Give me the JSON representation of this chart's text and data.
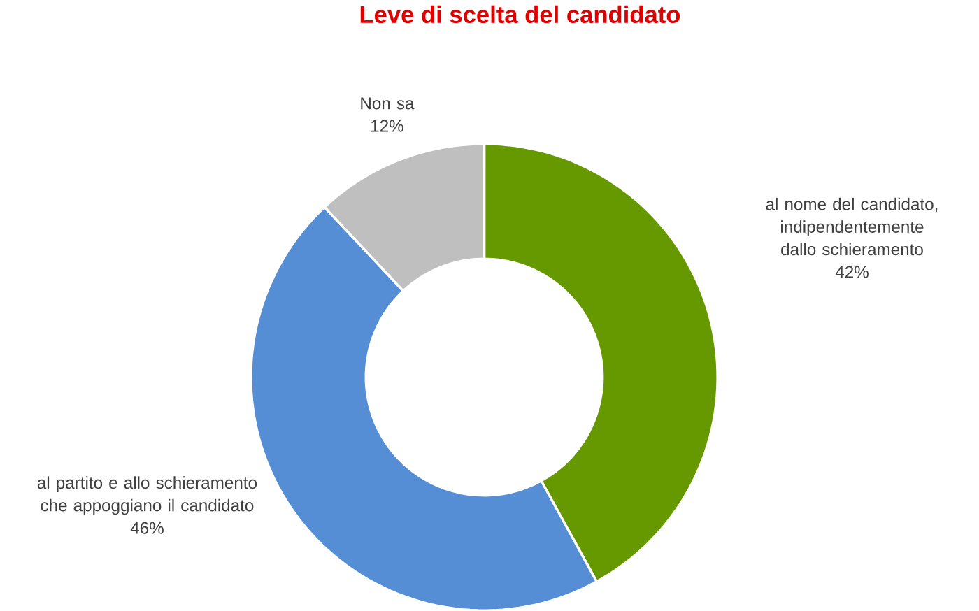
{
  "chart_data": {
    "type": "donut",
    "title": "Leve di scelta del candidato",
    "categories": [
      "al nome del candidato, indipendentemente dallo schieramento",
      "al partito e allo schieramento che appoggiano il candidato",
      "Non sa"
    ],
    "values": [
      42,
      46,
      12
    ],
    "colors": [
      "#669900",
      "#558ed5",
      "#bfbfbf"
    ],
    "value_labels": [
      "42%",
      "46%",
      "12%"
    ]
  }
}
